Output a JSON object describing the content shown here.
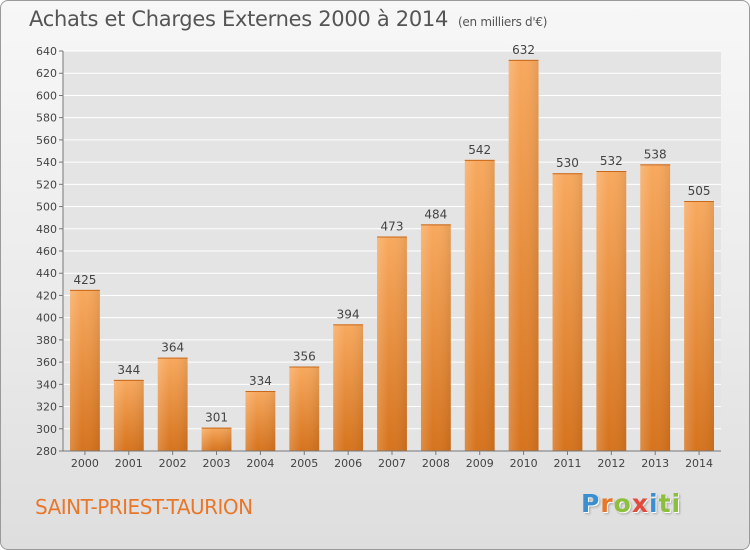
{
  "header": {
    "title": "Achats et Charges Externes 2000 à 2014",
    "unit": "(en milliers d'€)"
  },
  "footer": {
    "town": "SAINT-PRIEST-TAURION",
    "brand": [
      "P",
      "r",
      "o",
      "x",
      "i",
      "ti"
    ]
  },
  "colors": {
    "bar_light": "#f7a55a",
    "bar_dark": "#d8751f",
    "town": "#e8772a",
    "grid": "#ffffff"
  },
  "chart_data": {
    "type": "bar",
    "title": "Achats et Charges Externes 2000 à 2014",
    "xlabel": "",
    "ylabel": "",
    "categories": [
      "2000",
      "2001",
      "2002",
      "2003",
      "2004",
      "2005",
      "2006",
      "2007",
      "2008",
      "2009",
      "2010",
      "2011",
      "2012",
      "2013",
      "2014"
    ],
    "values": [
      425,
      344,
      364,
      301,
      334,
      356,
      394,
      473,
      484,
      542,
      632,
      530,
      532,
      538,
      505
    ],
    "ylim": [
      280,
      640
    ],
    "yticks": [
      280,
      300,
      320,
      340,
      360,
      380,
      400,
      420,
      440,
      460,
      480,
      500,
      520,
      540,
      560,
      580,
      600,
      620,
      640
    ],
    "grid": true,
    "legend": "none"
  }
}
